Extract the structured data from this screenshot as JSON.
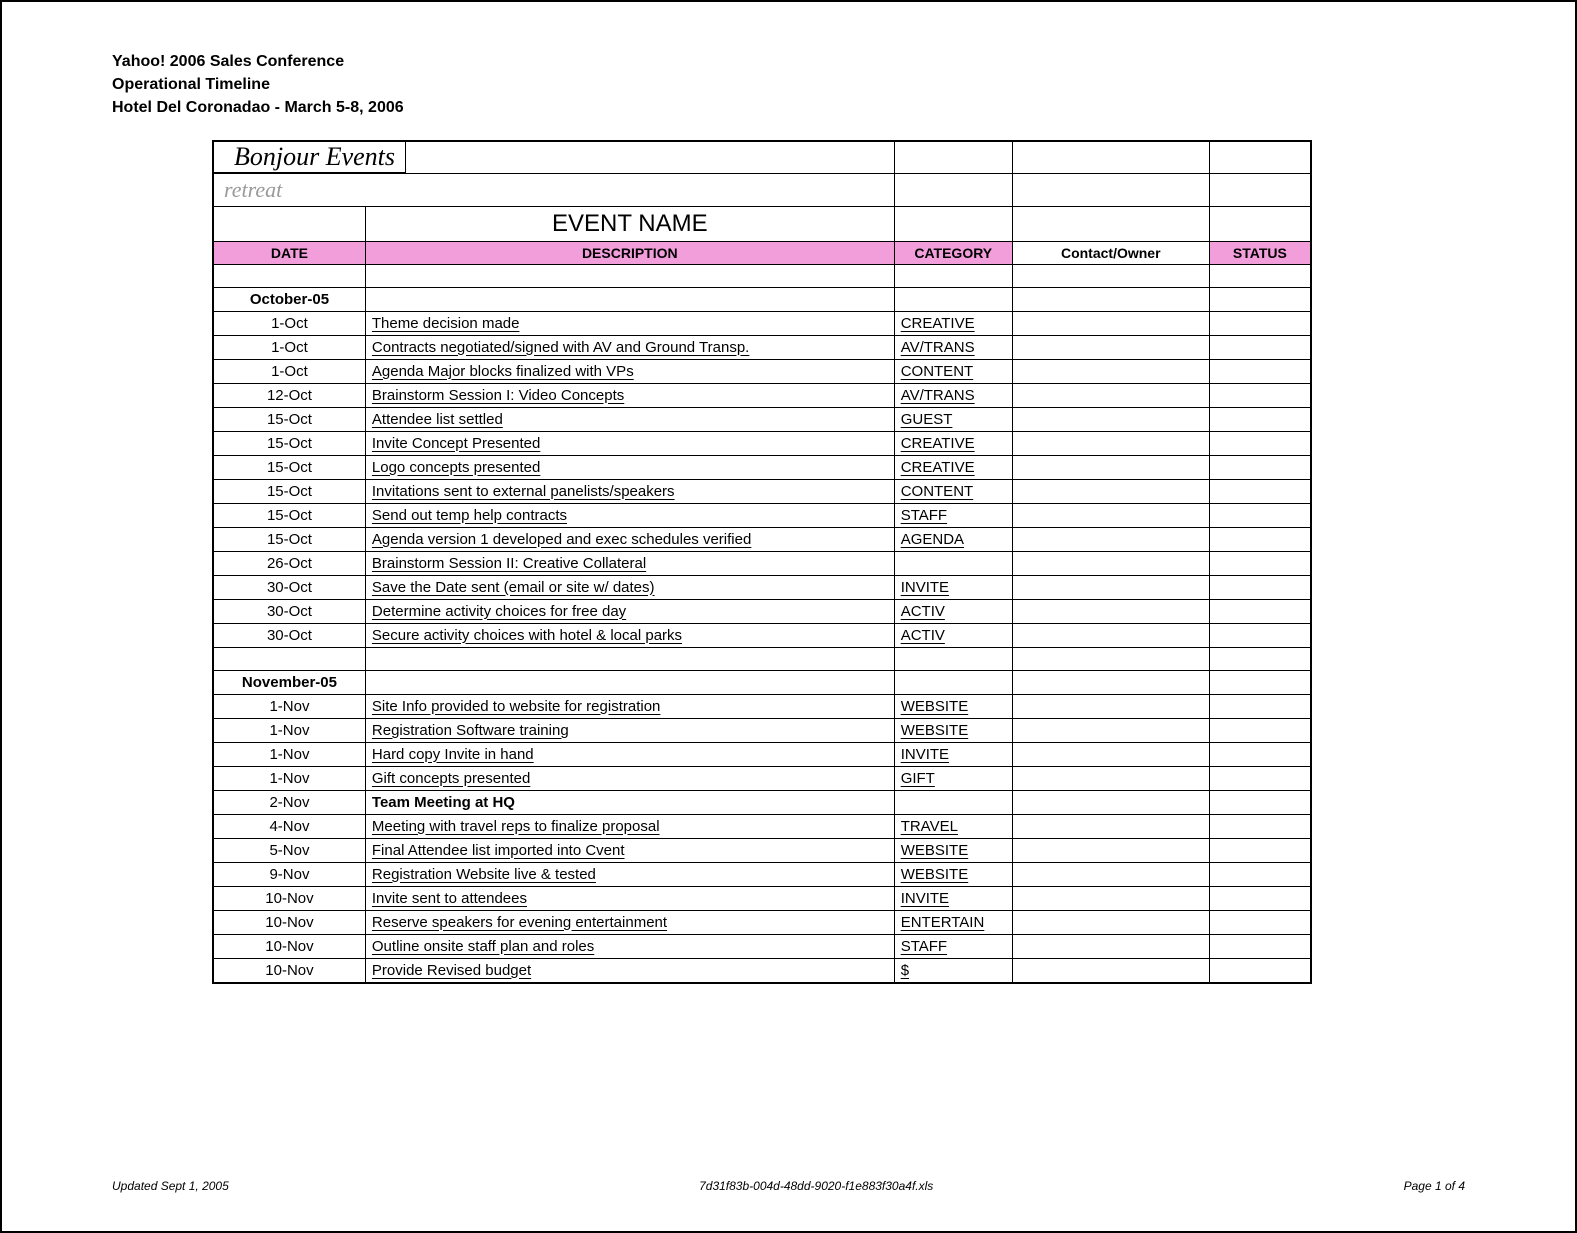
{
  "header": {
    "line1": "Yahoo! 2006 Sales Conference",
    "line2": "Operational Timeline",
    "line3": "Hotel Del Coronadao - March 5-8, 2006"
  },
  "top": {
    "brand": "Bonjour Events",
    "retreat": "retreat",
    "event_name_label": "EVENT NAME"
  },
  "columns": {
    "date": "DATE",
    "desc": "DESCRIPTION",
    "cat": "CATEGORY",
    "owner": "Contact/Owner",
    "status": "STATUS"
  },
  "months": {
    "oct": "October-05",
    "nov": "November-05"
  },
  "rows": [
    {
      "date": "1-Oct",
      "desc": "Theme decision made",
      "cat": "CREATIVE"
    },
    {
      "date": "1-Oct",
      "desc": "Contracts negotiated/signed with AV and Ground Transp.",
      "cat": "AV/TRANS"
    },
    {
      "date": "1-Oct",
      "desc": "Agenda Major blocks finalized with VPs",
      "cat": "CONTENT"
    },
    {
      "date": "12-Oct",
      "desc": "Brainstorm Session I: Video Concepts",
      "cat": "AV/TRANS"
    },
    {
      "date": "15-Oct",
      "desc": "Attendee list settled",
      "cat": "GUEST"
    },
    {
      "date": "15-Oct",
      "desc": "Invite Concept Presented",
      "cat": "CREATIVE"
    },
    {
      "date": "15-Oct",
      "desc": "Logo concepts presented",
      "cat": "CREATIVE"
    },
    {
      "date": "15-Oct",
      "desc": "Invitations sent to external panelists/speakers",
      "cat": "CONTENT"
    },
    {
      "date": "15-Oct",
      "desc": "Send out temp help contracts",
      "cat": "STAFF"
    },
    {
      "date": "15-Oct",
      "desc": "Agenda version 1 developed and exec schedules verified",
      "cat": "AGENDA"
    },
    {
      "date": "26-Oct",
      "desc": "Brainstorm Session II: Creative Collateral",
      "cat": ""
    },
    {
      "date": "30-Oct",
      "desc": "Save the Date sent (email or site w/ dates)",
      "cat": "INVITE"
    },
    {
      "date": "30-Oct",
      "desc": "Determine activity choices for free day",
      "cat": "ACTIV"
    },
    {
      "date": "30-Oct",
      "desc": "Secure activity choices with hotel & local parks",
      "cat": "ACTIV"
    }
  ],
  "rows2": [
    {
      "date": "1-Nov",
      "desc": "Site Info provided to website for registration",
      "cat": "WEBSITE"
    },
    {
      "date": "1-Nov",
      "desc": "Registration Software training",
      "cat": "WEBSITE"
    },
    {
      "date": "1-Nov",
      "desc": "Hard copy Invite in hand",
      "cat": "INVITE"
    },
    {
      "date": "1-Nov",
      "desc": "Gift concepts presented",
      "cat": "GIFT"
    },
    {
      "date": "2-Nov",
      "desc": "Team Meeting at HQ",
      "cat": "",
      "bold": true
    },
    {
      "date": "4-Nov",
      "desc": "Meeting with travel reps to finalize proposal",
      "cat": "TRAVEL"
    },
    {
      "date": "5-Nov",
      "desc": "Final Attendee list imported into Cvent",
      "cat": "WEBSITE"
    },
    {
      "date": "9-Nov",
      "desc": "Registration Website live & tested",
      "cat": "WEBSITE"
    },
    {
      "date": "10-Nov",
      "desc": "Invite sent to attendees",
      "cat": "INVITE"
    },
    {
      "date": "10-Nov",
      "desc": "Reserve speakers for evening entertainment",
      "cat": "ENTERTAIN"
    },
    {
      "date": "10-Nov",
      "desc": "Outline onsite staff plan and roles",
      "cat": "STAFF"
    },
    {
      "date": "10-Nov",
      "desc": "Provide Revised budget",
      "cat": "$"
    }
  ],
  "footer": {
    "left": "Updated Sept 1, 2005",
    "center": "7d31f83b-004d-48dd-9020-f1e883f30a4f.xls",
    "right": "Page 1 of 4"
  },
  "style": {
    "pink": "#f19edb",
    "grey_text": "#9a9a9a"
  }
}
